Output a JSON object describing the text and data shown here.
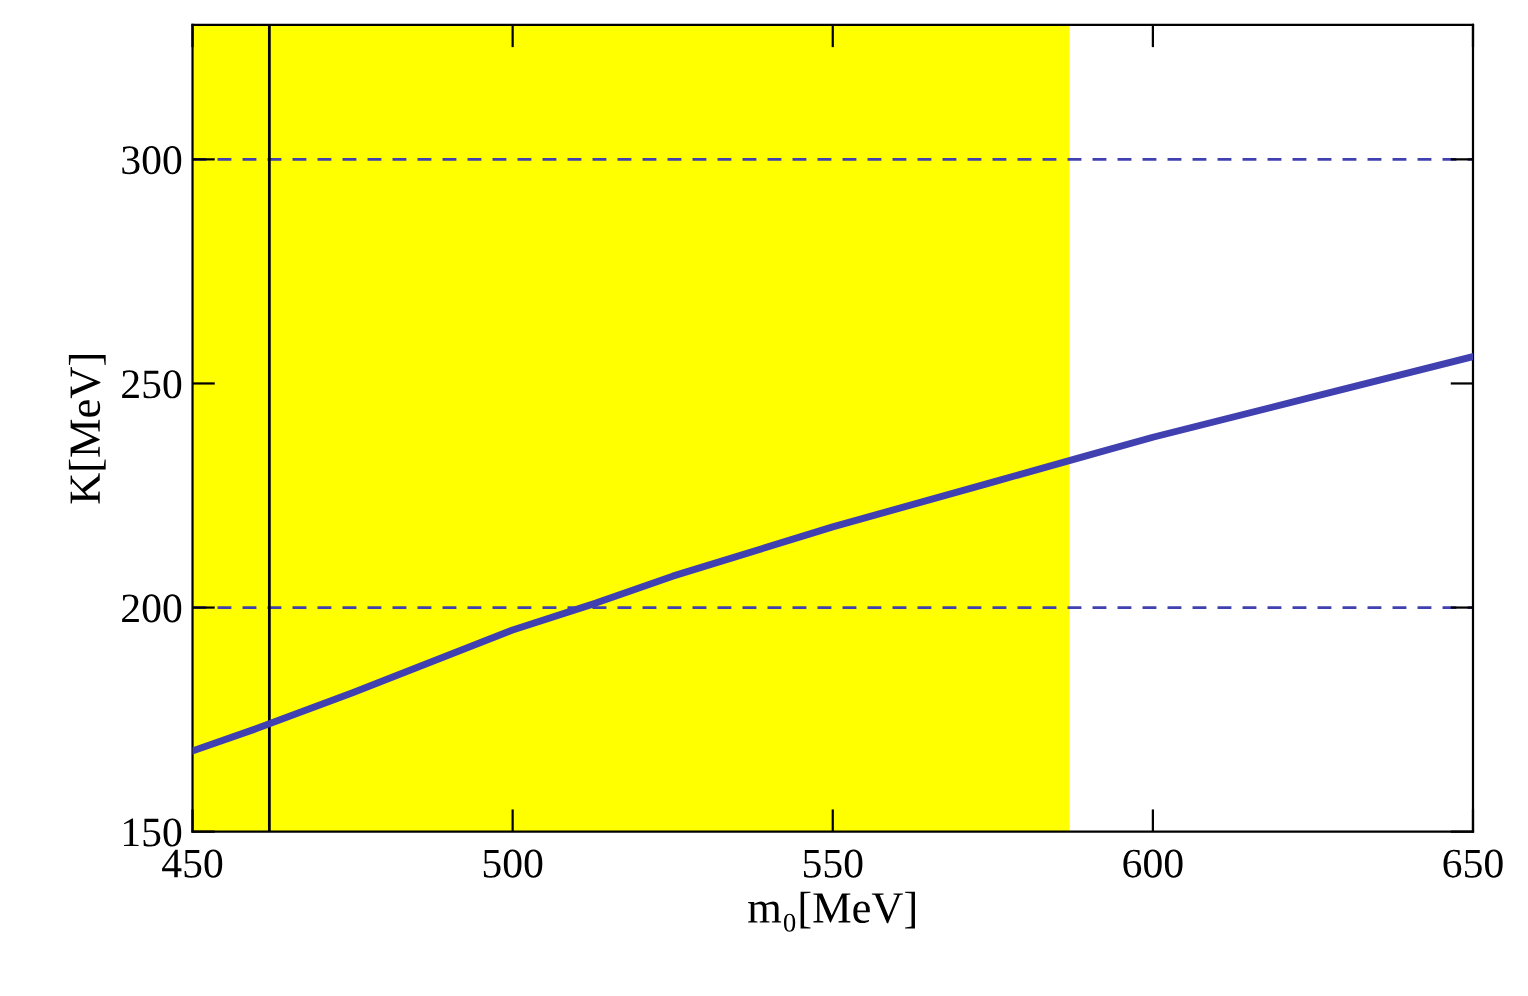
{
  "chart_data": {
    "type": "line",
    "xlabel": "m₀[MeV]",
    "ylabel": "K[MeV]",
    "x": [
      450,
      460,
      475,
      500,
      513,
      525,
      550,
      575,
      590,
      600,
      625,
      650
    ],
    "series": [
      {
        "color": "#4040b0",
        "values": [
          168,
          173,
          181,
          195,
          201,
          207,
          218,
          228,
          234,
          238,
          247,
          256
        ]
      }
    ],
    "xlim": [
      450,
      650
    ],
    "ylim": [
      150,
      330
    ],
    "xticks": [
      450,
      500,
      550,
      600,
      650
    ],
    "yticks": [
      150,
      200,
      250,
      300
    ],
    "ref_lines": [
      {
        "axis": "y",
        "value": 200,
        "color": "#4040b0",
        "line_style": "dashed"
      },
      {
        "axis": "y",
        "value": 300,
        "color": "#4040b0",
        "line_style": "dashed"
      },
      {
        "axis": "x",
        "value": 462,
        "color": "#000000",
        "line_style": "solid"
      }
    ],
    "bands": [
      {
        "axis": "x",
        "from": 450,
        "to": 587,
        "color": "#ffff00"
      }
    ],
    "grid": false,
    "legend": false,
    "line_style": "solid",
    "marker": "none"
  }
}
